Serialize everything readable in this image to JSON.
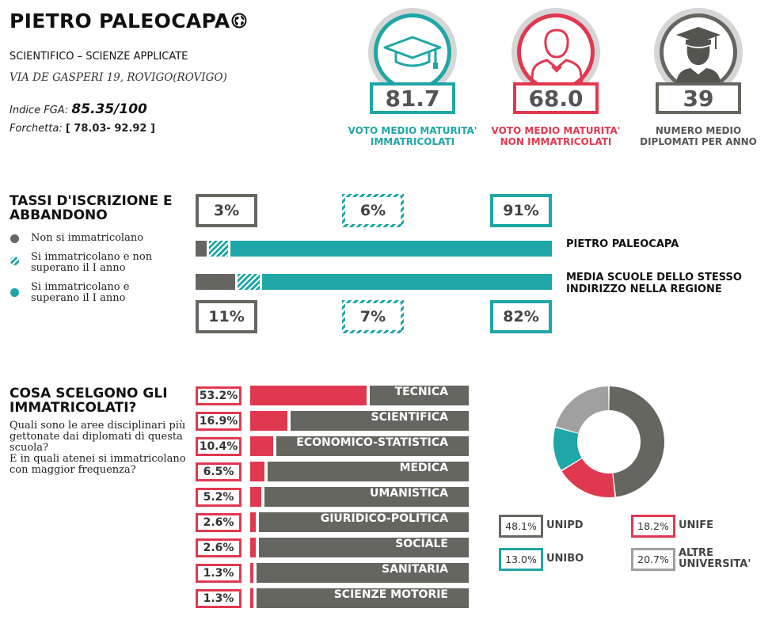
{
  "header": {
    "title": "PIETRO PALEOCAPA",
    "subtitle": "SCIENTIFICO – SCIENZE APPLICATE",
    "address": "VIA DE GASPERI 19, ROVIGO(ROVIGO)",
    "fga_label": "Indice FGA: ",
    "fga_value": "85.35/100",
    "forchetta_label": "Forchetta: ",
    "forchetta_value": "[ 78.03- 92.92 ]"
  },
  "stats": [
    {
      "value": "81.7",
      "label_line1": "VOTO MEDIO MATURITA'",
      "label_line2": "IMMATRICOLATI",
      "color": "#1fa6a6",
      "icon": "graduation-cap-icon"
    },
    {
      "value": "68.0",
      "label_line1": "VOTO MEDIO MATURITA'",
      "label_line2": "NON IMMATRICOLATI",
      "color": "#e0394f",
      "icon": "person-icon"
    },
    {
      "value": "39",
      "label_line1": "NUMERO MEDIO",
      "label_line2": "DIPLOMATI PER ANNO",
      "color": "#666660",
      "icon": "graduate-person-icon"
    }
  ],
  "enrollment": {
    "title_line1": "TASSI D'ISCRIZIONE E",
    "title_line2": "ABBANDONO",
    "legend": [
      {
        "label_line1": "Non si immatricolano",
        "label_line2": "",
        "color": "#666660"
      },
      {
        "label_line1": "Si immatricolano e non",
        "label_line2": "superano il I anno",
        "color": "#1fa6a6",
        "hatched": true
      },
      {
        "label_line1": "Si immatricolano e",
        "label_line2": "superano il I anno",
        "color": "#1fa6a6"
      }
    ],
    "school": {
      "name": "PIETRO PALEOCAPA",
      "labels": [
        "3%",
        "6%",
        "91%"
      ]
    },
    "region": {
      "name_line1": "MEDIA SCUOLE DELLO STESSO",
      "name_line2": "INDIRIZZO NELLA REGIONE",
      "labels": [
        "11%",
        "7%",
        "82%"
      ]
    }
  },
  "choices": {
    "title_line1": "COSA SCELGONO GLI",
    "title_line2": "IMMATRICOLATI?",
    "question_lines": [
      "Quali sono le aree disciplinari più",
      "gettonate dai diplomati di questa",
      "scuola?",
      "E in quali atenei si immatricolano",
      "con maggior frequenza?"
    ]
  },
  "chart_data": [
    {
      "type": "bar",
      "subject": "stacked enrollment rates",
      "categories": [
        "PIETRO PALEOCAPA",
        "MEDIA SCUOLE DELLO STESSO INDIRIZZO NELLA REGIONE"
      ],
      "series": [
        {
          "name": "Non si immatricolano",
          "values": [
            3,
            11
          ]
        },
        {
          "name": "Si immatricolano e non superano il I anno",
          "values": [
            6,
            7
          ]
        },
        {
          "name": "Si immatricolano e superano il I anno",
          "values": [
            91,
            82
          ]
        }
      ]
    },
    {
      "type": "bar",
      "subject": "disciplinary areas",
      "categories": [
        "TECNICA",
        "SCIENTIFICA",
        "ECONOMICO-STATISTICA",
        "MEDICA",
        "UMANISTICA",
        "GIURIDICO-POLITICA",
        "SOCIALE",
        "SANITARIA",
        "SCIENZE MOTORIE"
      ],
      "values": [
        53.2,
        16.9,
        10.4,
        6.5,
        5.2,
        2.6,
        2.6,
        1.3,
        1.3
      ],
      "labels": [
        "53.2%",
        "16.9%",
        "10.4%",
        "6.5%",
        "5.2%",
        "2.6%",
        "2.6%",
        "1.3%",
        "1.3%"
      ],
      "ylim": [
        0,
        100
      ]
    },
    {
      "type": "pie",
      "subject": "universities",
      "slices": [
        {
          "label": "UNIPD",
          "value": 48.1,
          "text": "48.1%",
          "color": "#666660"
        },
        {
          "label": "UNIFE",
          "value": 18.2,
          "text": "18.2%",
          "color": "#e0394f"
        },
        {
          "label": "UNIBO",
          "value": 13.0,
          "text": "13.0%",
          "color": "#1fa6a6"
        },
        {
          "label_line1": "ALTRE",
          "label_line2": "UNIVERSITA'",
          "value": 20.7,
          "text": "20.7%",
          "color": "#a0a0a0"
        }
      ]
    }
  ],
  "colors": {
    "gray": "#666660",
    "teal": "#1fa6a6",
    "red": "#e0394f",
    "light_gray": "#a0a0a0"
  }
}
